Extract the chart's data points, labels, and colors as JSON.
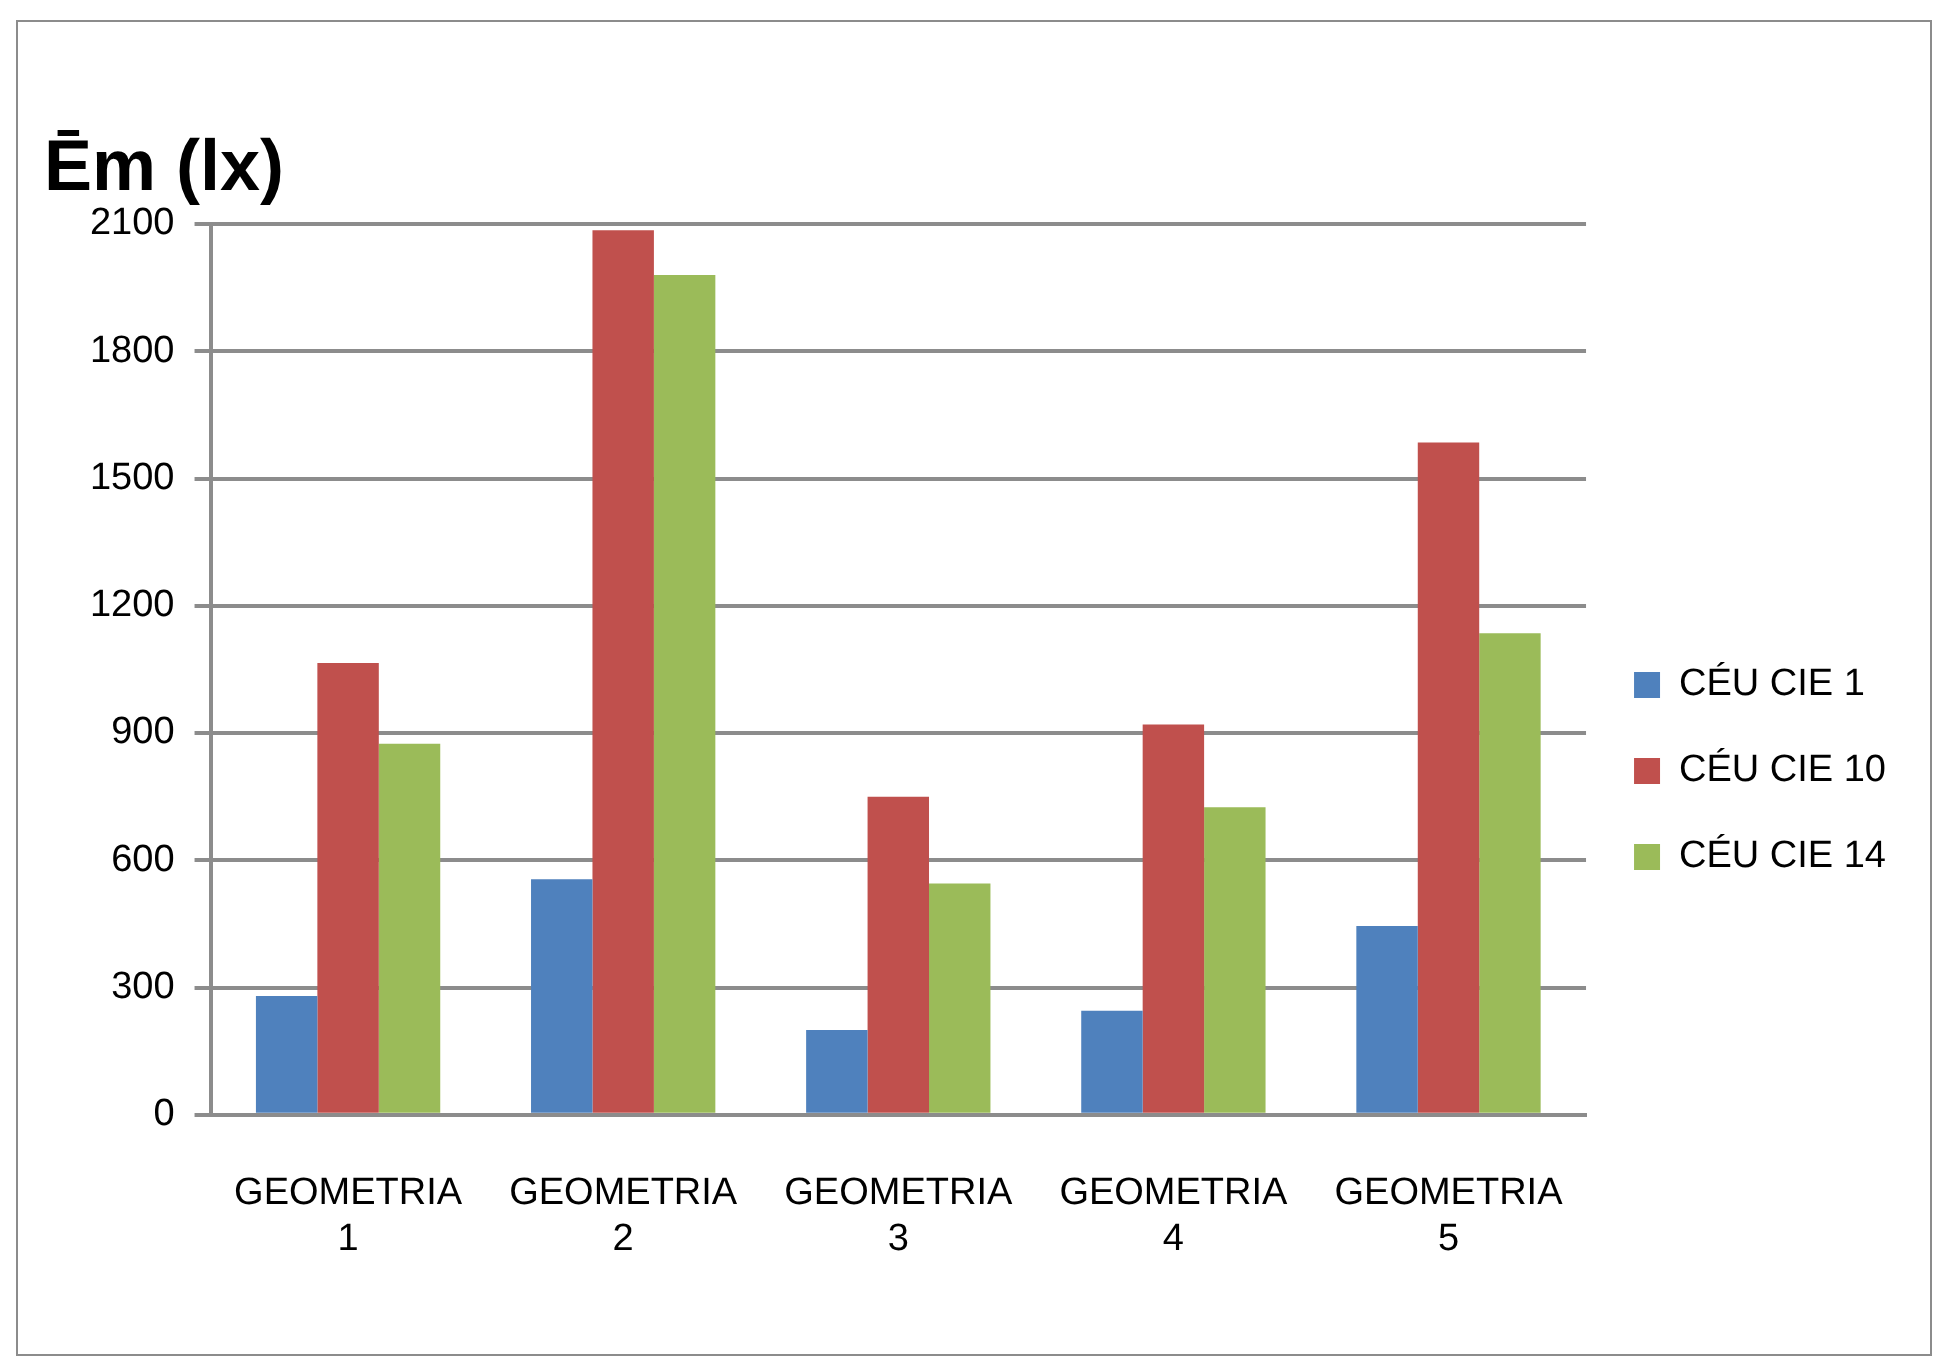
{
  "chart_data": {
    "type": "bar",
    "title": "Ēm (lx)",
    "categories": [
      "GEOMETRIA 1",
      "GEOMETRIA 2",
      "GEOMETRIA 3",
      "GEOMETRIA 4",
      "GEOMETRIA 5"
    ],
    "series": [
      {
        "name": "CÉU CIE 1",
        "color": "#4f81bd",
        "values": [
          280,
          555,
          200,
          245,
          445
        ]
      },
      {
        "name": "CÉU CIE 10",
        "color": "#c0504d",
        "values": [
          1065,
          2085,
          750,
          920,
          1585
        ]
      },
      {
        "name": "CÉU CIE 14",
        "color": "#9bbb59",
        "values": [
          875,
          1980,
          545,
          725,
          1135
        ]
      }
    ],
    "ylim": [
      0,
      2100
    ],
    "yticks": [
      0,
      300,
      600,
      900,
      1200,
      1500,
      1800,
      2100
    ],
    "grid": "y",
    "legend": "right"
  }
}
